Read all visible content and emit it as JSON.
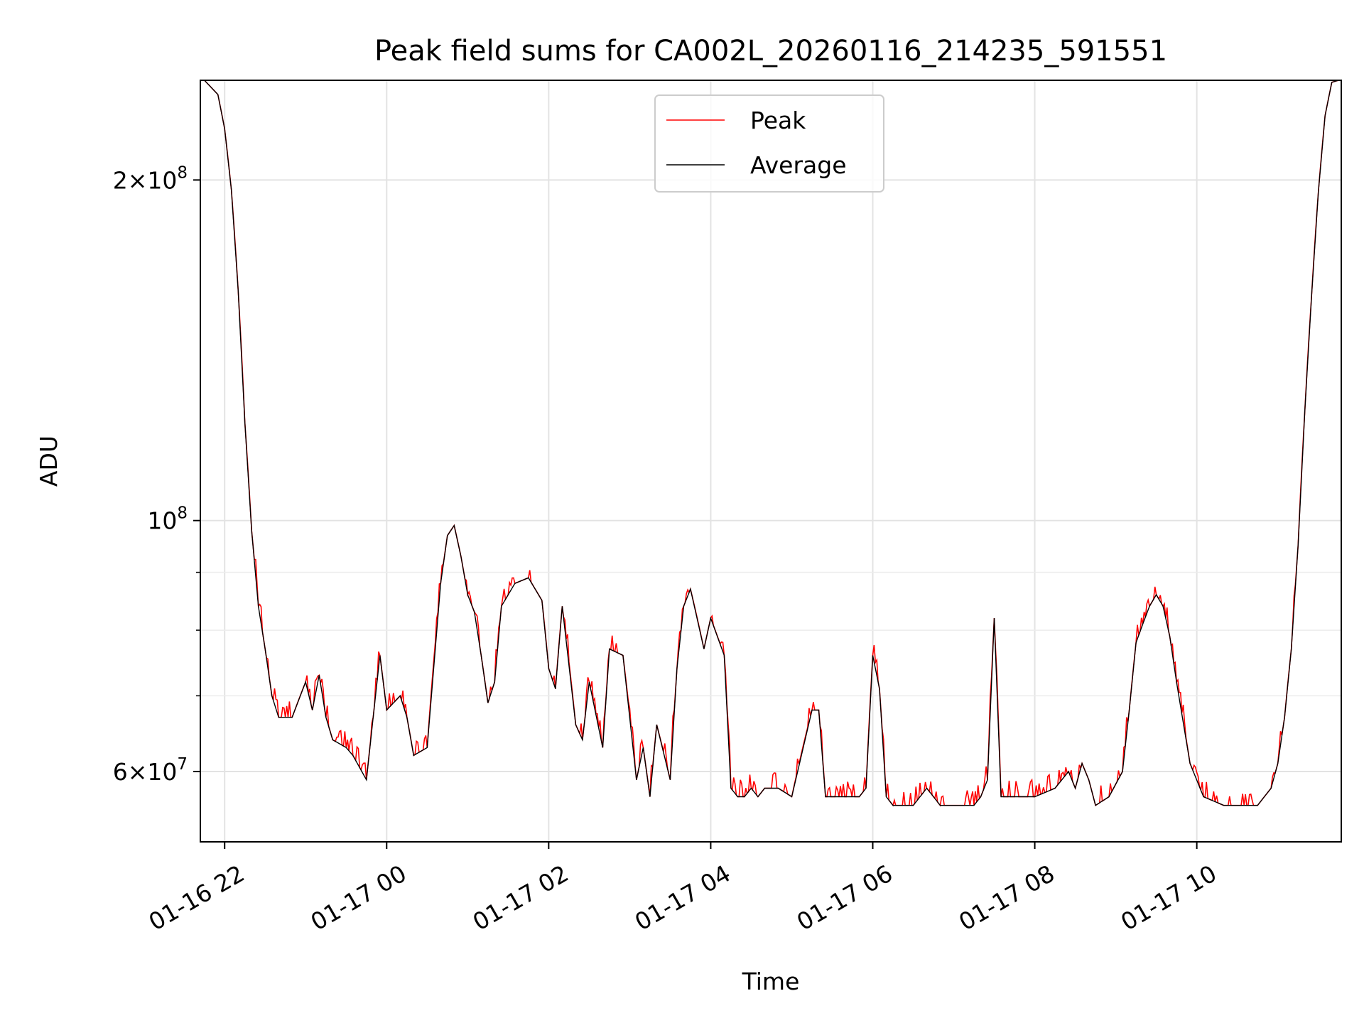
{
  "chart_data": {
    "type": "line",
    "title": "Peak field sums for CA002L_20260116_214235_591551",
    "xlabel": "Time",
    "ylabel": "ADU",
    "y_scale": "log",
    "ylim": [
      52000000,
      245000000
    ],
    "xlim": [
      "2026-01-16 21:42",
      "2026-01-17 11:47"
    ],
    "grid": true,
    "legend_position": "upper center",
    "x_ticks": [
      {
        "t": "2026-01-16 22:00",
        "label": "01-16 22"
      },
      {
        "t": "2026-01-17 00:00",
        "label": "01-17 00"
      },
      {
        "t": "2026-01-17 02:00",
        "label": "01-17 02"
      },
      {
        "t": "2026-01-17 04:00",
        "label": "01-17 04"
      },
      {
        "t": "2026-01-17 06:00",
        "label": "01-17 06"
      },
      {
        "t": "2026-01-17 08:00",
        "label": "01-17 08"
      },
      {
        "t": "2026-01-17 10:00",
        "label": "01-17 10"
      }
    ],
    "y_ticks": [
      {
        "value": 60000000,
        "mantissa": "6",
        "exp": "7"
      },
      {
        "value": 100000000,
        "mantissa": "",
        "exp": "8"
      },
      {
        "value": 200000000,
        "mantissa": "2",
        "exp": "8"
      }
    ],
    "y_minor_ticks": [
      70000000,
      80000000,
      90000000
    ],
    "series": [
      {
        "name": "Peak",
        "color": "#ff0000",
        "noise_above_average": 0.025,
        "x": [
          "2026-01-16 21:45",
          "2026-01-16 21:55",
          "2026-01-16 22:00",
          "2026-01-16 22:05",
          "2026-01-16 22:10",
          "2026-01-16 22:15",
          "2026-01-16 22:20",
          "2026-01-16 22:25",
          "2026-01-16 22:30",
          "2026-01-16 22:35",
          "2026-01-16 22:40",
          "2026-01-16 22:50",
          "2026-01-16 23:00",
          "2026-01-16 23:05",
          "2026-01-16 23:10",
          "2026-01-16 23:15",
          "2026-01-16 23:20",
          "2026-01-16 23:30",
          "2026-01-16 23:35",
          "2026-01-16 23:45",
          "2026-01-16 23:50",
          "2026-01-16 23:55",
          "2026-01-17 00:00",
          "2026-01-17 00:10",
          "2026-01-17 00:15",
          "2026-01-17 00:20",
          "2026-01-17 00:30",
          "2026-01-17 00:40",
          "2026-01-17 00:45",
          "2026-01-17 00:50",
          "2026-01-17 00:55",
          "2026-01-17 01:00",
          "2026-01-17 01:05",
          "2026-01-17 01:10",
          "2026-01-17 01:15",
          "2026-01-17 01:20",
          "2026-01-17 01:25",
          "2026-01-17 01:35",
          "2026-01-17 01:45",
          "2026-01-17 01:55",
          "2026-01-17 02:00",
          "2026-01-17 02:05",
          "2026-01-17 02:10",
          "2026-01-17 02:20",
          "2026-01-17 02:25",
          "2026-01-17 02:30",
          "2026-01-17 02:40",
          "2026-01-17 02:45",
          "2026-01-17 02:55",
          "2026-01-17 03:05",
          "2026-01-17 03:10",
          "2026-01-17 03:15",
          "2026-01-17 03:20",
          "2026-01-17 03:30",
          "2026-01-17 03:35",
          "2026-01-17 03:40",
          "2026-01-17 03:45",
          "2026-01-17 03:55",
          "2026-01-17 04:00",
          "2026-01-17 04:10",
          "2026-01-17 04:15",
          "2026-01-17 04:20",
          "2026-01-17 04:25",
          "2026-01-17 04:30",
          "2026-01-17 04:35",
          "2026-01-17 04:40",
          "2026-01-17 04:50",
          "2026-01-17 05:00",
          "2026-01-17 05:15",
          "2026-01-17 05:20",
          "2026-01-17 05:25",
          "2026-01-17 05:35",
          "2026-01-17 05:50",
          "2026-01-17 05:55",
          "2026-01-17 06:00",
          "2026-01-17 06:05",
          "2026-01-17 06:10",
          "2026-01-17 06:15",
          "2026-01-17 06:20",
          "2026-01-17 06:30",
          "2026-01-17 06:40",
          "2026-01-17 06:45",
          "2026-01-17 06:50",
          "2026-01-17 06:55",
          "2026-01-17 07:05",
          "2026-01-17 07:15",
          "2026-01-17 07:20",
          "2026-01-17 07:25",
          "2026-01-17 07:30",
          "2026-01-17 07:35",
          "2026-01-17 07:45",
          "2026-01-17 08:00",
          "2026-01-17 08:15",
          "2026-01-17 08:25",
          "2026-01-17 08:30",
          "2026-01-17 08:35",
          "2026-01-17 08:40",
          "2026-01-17 08:45",
          "2026-01-17 08:55",
          "2026-01-17 09:05",
          "2026-01-17 09:10",
          "2026-01-17 09:15",
          "2026-01-17 09:20",
          "2026-01-17 09:25",
          "2026-01-17 09:30",
          "2026-01-17 09:35",
          "2026-01-17 09:40",
          "2026-01-17 09:45",
          "2026-01-17 09:55",
          "2026-01-17 10:05",
          "2026-01-17 10:20",
          "2026-01-17 10:35",
          "2026-01-17 10:45",
          "2026-01-17 10:50",
          "2026-01-17 10:55",
          "2026-01-17 11:00",
          "2026-01-17 11:05",
          "2026-01-17 11:10",
          "2026-01-17 11:15",
          "2026-01-17 11:20",
          "2026-01-17 11:25",
          "2026-01-17 11:30",
          "2026-01-17 11:35",
          "2026-01-17 11:40",
          "2026-01-17 11:45"
        ],
        "values": [
          245000000,
          238000000,
          222000000,
          196000000,
          160000000,
          122000000,
          98000000,
          84000000,
          77000000,
          70000000,
          67000000,
          67000000,
          72000000,
          68000000,
          73000000,
          67000000,
          64000000,
          63000000,
          62000000,
          59000000,
          67000000,
          76000000,
          68000000,
          70000000,
          67000000,
          62000000,
          63000000,
          88000000,
          97000000,
          99000000,
          93000000,
          86000000,
          83000000,
          76000000,
          69000000,
          72000000,
          84000000,
          88000000,
          89000000,
          85000000,
          74000000,
          71000000,
          84000000,
          66000000,
          64000000,
          72000000,
          63000000,
          77000000,
          76000000,
          59000000,
          63000000,
          57000000,
          66000000,
          59000000,
          74000000,
          84000000,
          87000000,
          77000000,
          82000000,
          76000000,
          58000000,
          57000000,
          57000000,
          58000000,
          57000000,
          58000000,
          58000000,
          57000000,
          68000000,
          68000000,
          57000000,
          57000000,
          57000000,
          58000000,
          76000000,
          71000000,
          57000000,
          56000000,
          56000000,
          56000000,
          58000000,
          57000000,
          56000000,
          56000000,
          56000000,
          56000000,
          57000000,
          59000000,
          82000000,
          57000000,
          57000000,
          57000000,
          58000000,
          60000000,
          58000000,
          61000000,
          59000000,
          56000000,
          57000000,
          60000000,
          68000000,
          78000000,
          81000000,
          84000000,
          86000000,
          84000000,
          79000000,
          72000000,
          61000000,
          57000000,
          56000000,
          56000000,
          56000000,
          57000000,
          58000000,
          61000000,
          67000000,
          77000000,
          95000000,
          125000000,
          158000000,
          195000000,
          228000000,
          244000000,
          245000000
        ]
      },
      {
        "name": "Average",
        "color": "#000000",
        "x": [
          "2026-01-16 21:45",
          "2026-01-16 21:55",
          "2026-01-16 22:00",
          "2026-01-16 22:05",
          "2026-01-16 22:10",
          "2026-01-16 22:15",
          "2026-01-16 22:20",
          "2026-01-16 22:25",
          "2026-01-16 22:30",
          "2026-01-16 22:35",
          "2026-01-16 22:40",
          "2026-01-16 22:50",
          "2026-01-16 23:00",
          "2026-01-16 23:05",
          "2026-01-16 23:10",
          "2026-01-16 23:15",
          "2026-01-16 23:20",
          "2026-01-16 23:30",
          "2026-01-16 23:35",
          "2026-01-16 23:45",
          "2026-01-16 23:50",
          "2026-01-16 23:55",
          "2026-01-17 00:00",
          "2026-01-17 00:10",
          "2026-01-17 00:15",
          "2026-01-17 00:20",
          "2026-01-17 00:30",
          "2026-01-17 00:40",
          "2026-01-17 00:45",
          "2026-01-17 00:50",
          "2026-01-17 00:55",
          "2026-01-17 01:00",
          "2026-01-17 01:05",
          "2026-01-17 01:10",
          "2026-01-17 01:15",
          "2026-01-17 01:20",
          "2026-01-17 01:25",
          "2026-01-17 01:35",
          "2026-01-17 01:45",
          "2026-01-17 01:55",
          "2026-01-17 02:00",
          "2026-01-17 02:05",
          "2026-01-17 02:10",
          "2026-01-17 02:20",
          "2026-01-17 02:25",
          "2026-01-17 02:30",
          "2026-01-17 02:40",
          "2026-01-17 02:45",
          "2026-01-17 02:55",
          "2026-01-17 03:05",
          "2026-01-17 03:10",
          "2026-01-17 03:15",
          "2026-01-17 03:20",
          "2026-01-17 03:30",
          "2026-01-17 03:35",
          "2026-01-17 03:40",
          "2026-01-17 03:45",
          "2026-01-17 03:55",
          "2026-01-17 04:00",
          "2026-01-17 04:10",
          "2026-01-17 04:15",
          "2026-01-17 04:20",
          "2026-01-17 04:25",
          "2026-01-17 04:30",
          "2026-01-17 04:35",
          "2026-01-17 04:40",
          "2026-01-17 04:50",
          "2026-01-17 05:00",
          "2026-01-17 05:15",
          "2026-01-17 05:20",
          "2026-01-17 05:25",
          "2026-01-17 05:35",
          "2026-01-17 05:50",
          "2026-01-17 05:55",
          "2026-01-17 06:00",
          "2026-01-17 06:05",
          "2026-01-17 06:10",
          "2026-01-17 06:15",
          "2026-01-17 06:20",
          "2026-01-17 06:30",
          "2026-01-17 06:40",
          "2026-01-17 06:45",
          "2026-01-17 06:50",
          "2026-01-17 06:55",
          "2026-01-17 07:05",
          "2026-01-17 07:15",
          "2026-01-17 07:20",
          "2026-01-17 07:25",
          "2026-01-17 07:30",
          "2026-01-17 07:35",
          "2026-01-17 07:45",
          "2026-01-17 08:00",
          "2026-01-17 08:15",
          "2026-01-17 08:25",
          "2026-01-17 08:30",
          "2026-01-17 08:35",
          "2026-01-17 08:40",
          "2026-01-17 08:45",
          "2026-01-17 08:55",
          "2026-01-17 09:05",
          "2026-01-17 09:10",
          "2026-01-17 09:15",
          "2026-01-17 09:20",
          "2026-01-17 09:25",
          "2026-01-17 09:30",
          "2026-01-17 09:35",
          "2026-01-17 09:40",
          "2026-01-17 09:45",
          "2026-01-17 09:55",
          "2026-01-17 10:05",
          "2026-01-17 10:20",
          "2026-01-17 10:35",
          "2026-01-17 10:45",
          "2026-01-17 10:50",
          "2026-01-17 10:55",
          "2026-01-17 11:00",
          "2026-01-17 11:05",
          "2026-01-17 11:10",
          "2026-01-17 11:15",
          "2026-01-17 11:20",
          "2026-01-17 11:25",
          "2026-01-17 11:30",
          "2026-01-17 11:35",
          "2026-01-17 11:40",
          "2026-01-17 11:45"
        ],
        "values": [
          245000000,
          238000000,
          222000000,
          196000000,
          160000000,
          122000000,
          98000000,
          84000000,
          77000000,
          70000000,
          67000000,
          67000000,
          72000000,
          68000000,
          73000000,
          67000000,
          64000000,
          63000000,
          62000000,
          59000000,
          67000000,
          76000000,
          68000000,
          70000000,
          67000000,
          62000000,
          63000000,
          88000000,
          97000000,
          99000000,
          93000000,
          86000000,
          83000000,
          76000000,
          69000000,
          72000000,
          84000000,
          88000000,
          89000000,
          85000000,
          74000000,
          71000000,
          84000000,
          66000000,
          64000000,
          72000000,
          63000000,
          77000000,
          76000000,
          59000000,
          63000000,
          57000000,
          66000000,
          59000000,
          74000000,
          84000000,
          87000000,
          77000000,
          82000000,
          76000000,
          58000000,
          57000000,
          57000000,
          58000000,
          57000000,
          58000000,
          58000000,
          57000000,
          68000000,
          68000000,
          57000000,
          57000000,
          57000000,
          58000000,
          76000000,
          71000000,
          57000000,
          56000000,
          56000000,
          56000000,
          58000000,
          57000000,
          56000000,
          56000000,
          56000000,
          56000000,
          57000000,
          59000000,
          82000000,
          57000000,
          57000000,
          57000000,
          58000000,
          60000000,
          58000000,
          61000000,
          59000000,
          56000000,
          57000000,
          60000000,
          68000000,
          78000000,
          81000000,
          84000000,
          86000000,
          84000000,
          79000000,
          72000000,
          61000000,
          57000000,
          56000000,
          56000000,
          56000000,
          57000000,
          58000000,
          61000000,
          67000000,
          77000000,
          95000000,
          125000000,
          158000000,
          195000000,
          228000000,
          244000000,
          245000000
        ]
      }
    ]
  }
}
